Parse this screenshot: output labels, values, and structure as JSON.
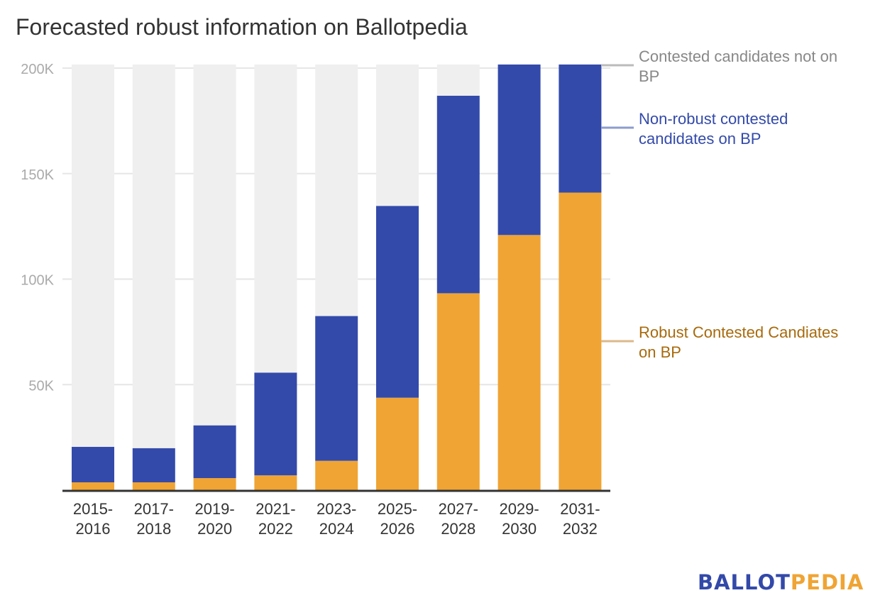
{
  "title": "Forecasted robust information on Ballotpedia",
  "logo": {
    "part1": "BALLOT",
    "part2": "PEDIA"
  },
  "chart_data": {
    "type": "bar",
    "stacked": true,
    "title": "Forecasted robust information on Ballotpedia",
    "xlabel": "",
    "ylabel": "",
    "ylim": [
      0,
      200000
    ],
    "yticks": [
      50000,
      100000,
      150000,
      200000
    ],
    "ytick_labels": [
      "50K",
      "100K",
      "150K",
      "200K"
    ],
    "grid": true,
    "legend_placement": "right (direct labels)",
    "categories": [
      [
        "2015-",
        "2016"
      ],
      [
        "2017-",
        "2018"
      ],
      [
        "2019-",
        "2020"
      ],
      [
        "2021-",
        "2022"
      ],
      [
        "2023-",
        "2024"
      ],
      [
        "2025-",
        "2026"
      ],
      [
        "2027-",
        "2028"
      ],
      [
        "2029-",
        "2030"
      ],
      [
        "2031-",
        "2032"
      ]
    ],
    "series": [
      {
        "name": "Robust Contested Candiates on BP",
        "label_lines": [
          "Robust Contested Candiates",
          "on BP"
        ],
        "color": "#f0a434",
        "label_color": "#a86a0c",
        "connector_color": "#dcb98a",
        "values": [
          3700,
          3700,
          5700,
          7000,
          13900,
          43800,
          93300,
          120900,
          141000
        ]
      },
      {
        "name": "Non-robust contested candidates on BP",
        "label_lines": [
          "Non-robust contested",
          "candidates on BP"
        ],
        "color": "#334aaa",
        "label_color": "#334aaa",
        "connector_color": "#8e9ccd",
        "values": [
          16800,
          16200,
          25000,
          48700,
          68600,
          90900,
          93600,
          80800,
          60700
        ]
      },
      {
        "name": "Contested candidates not on BP",
        "label_lines": [
          "Contested candidates not on",
          "BP"
        ],
        "color": "#efefef",
        "label_color": "#888888",
        "connector_color": "#bbbbbb",
        "values": [
          181200,
          181800,
          171000,
          146000,
          119200,
          66999,
          14800,
          0,
          0
        ]
      }
    ]
  }
}
